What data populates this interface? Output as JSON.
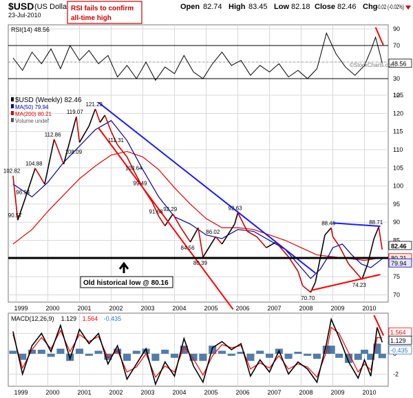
{
  "header": {
    "symbol": "$USD",
    "name": "(US Dollar Ind",
    "date": "23-Jul-2010",
    "open_label": "Open",
    "open": "82.74",
    "high_label": "High",
    "high": "83.45",
    "low_label": "Low",
    "low": "82.18",
    "close_label": "Close",
    "close": "82.46",
    "chg_label": "Chg",
    "chg": "-0.02 (-0.02%)",
    "watermark": "©StockCharts.com"
  },
  "annotations": {
    "rsi_note_line1": "RSI fails to confirm",
    "rsi_note_line2": "all-time high",
    "low_note": "Old historical low @ 80.16"
  },
  "colors": {
    "price_up": "#000000",
    "price_down": "#cc0000",
    "ma50": "#000099",
    "ma200": "#dd0000",
    "trend_blue": "#1a1aff",
    "trend_red": "#ff0000",
    "histogram": "#336699",
    "macd_signal": "#ff0000",
    "grid": "#d8d8d8"
  },
  "chart_data": [
    {
      "panel": "rsi",
      "type": "line",
      "legend": "RSI(14) 48.56",
      "yticks": [
        10,
        30,
        50,
        70,
        90
      ],
      "ylim": [
        10,
        95
      ],
      "reference_lines": [
        30,
        70
      ],
      "last_value": "48.56",
      "x": [
        1998.9,
        1999.2,
        1999.5,
        1999.8,
        2000.1,
        2000.4,
        2000.7,
        2001.0,
        2001.3,
        2001.6,
        2001.9,
        2002.2,
        2002.5,
        2002.8,
        2003.1,
        2003.4,
        2003.7,
        2004.0,
        2004.3,
        2004.6,
        2004.9,
        2005.2,
        2005.5,
        2005.8,
        2006.1,
        2006.4,
        2006.7,
        2007.0,
        2007.3,
        2007.6,
        2007.9,
        2008.2,
        2008.5,
        2008.8,
        2009.1,
        2009.4,
        2009.7,
        2010.0,
        2010.2,
        2010.35,
        2010.5,
        2010.56
      ],
      "y": [
        55,
        40,
        62,
        48,
        66,
        42,
        70,
        52,
        64,
        48,
        58,
        32,
        46,
        30,
        50,
        28,
        44,
        36,
        58,
        38,
        30,
        48,
        62,
        46,
        52,
        34,
        46,
        38,
        48,
        32,
        40,
        30,
        42,
        85,
        60,
        44,
        34,
        46,
        64,
        80,
        58,
        48.56
      ]
    },
    {
      "panel": "price",
      "type": "line",
      "legend": [
        "$USD (Weekly) 82.46",
        "MA(50) 79.94",
        "MA(200) 80.21",
        "Volume undef"
      ],
      "ylim": [
        68,
        125
      ],
      "yticks": [
        70,
        75,
        80,
        85,
        90,
        95,
        100,
        105,
        110,
        115,
        120,
        125
      ],
      "x_labels": [
        "1999",
        "2000",
        "2001",
        "2002",
        "2003",
        "2004",
        "2005",
        "2006",
        "2007",
        "2008",
        "2009",
        "2010"
      ],
      "x_ticks": [
        1999,
        2000,
        2001,
        2002,
        2003,
        2004,
        2005,
        2006,
        2007,
        2008,
        2009,
        2010
      ],
      "series": [
        {
          "name": "$USD (Weekly) 82.46",
          "x": [
            1998.9,
            1999.05,
            1999.3,
            1999.6,
            1999.9,
            2000.2,
            2000.5,
            2000.9,
            2001.0,
            2001.3,
            2001.5,
            2001.65,
            2001.8,
            2002.0,
            2002.2,
            2002.5,
            2002.75,
            2003.0,
            2003.3,
            2003.5,
            2003.7,
            2003.95,
            2004.2,
            2004.5,
            2004.75,
            2004.9,
            2005.3,
            2005.5,
            2005.9,
            2006.0,
            2006.3,
            2006.6,
            2006.9,
            2007.2,
            2007.6,
            2007.9,
            2008.05,
            2008.3,
            2008.45,
            2008.6,
            2008.75,
            2008.95,
            2009.0,
            2009.2,
            2009.5,
            2009.8,
            2009.92,
            2010.1,
            2010.3,
            2010.45,
            2010.56
          ],
          "y": [
            102.82,
            90.57,
            96.94,
            104.88,
            100.5,
            112.86,
            106.0,
            119.07,
            112.0,
            116.5,
            121.23,
            117.5,
            119.5,
            115.0,
            111.31,
            108.0,
            103.64,
            99.49,
            95.5,
            91.68,
            89.0,
            92.29,
            88.5,
            84.56,
            88.5,
            80.39,
            86.02,
            84.0,
            89.5,
            92.63,
            87.5,
            86.0,
            83.0,
            84.5,
            80.5,
            76.5,
            72.5,
            70.7,
            73.5,
            80.0,
            86.5,
            88.46,
            86.0,
            83.5,
            78.5,
            75.5,
            74.23,
            78.5,
            85.5,
            88.71,
            82.46
          ]
        },
        {
          "name": "MA(50) 79.94",
          "x": [
            1998.9,
            1999.5,
            2000.0,
            2000.5,
            2001.0,
            2001.5,
            2002.0,
            2002.5,
            2003.0,
            2003.5,
            2004.0,
            2004.5,
            2005.0,
            2005.5,
            2006.0,
            2006.5,
            2007.0,
            2007.5,
            2008.0,
            2008.3,
            2008.6,
            2008.85,
            2009.0,
            2009.3,
            2009.6,
            2009.9,
            2010.2,
            2010.56
          ],
          "y": [
            100.5,
            97.0,
            101.0,
            106.5,
            111.0,
            115.5,
            118.0,
            112.5,
            104.5,
            97.0,
            91.5,
            89.5,
            86.5,
            85.5,
            88.0,
            87.5,
            85.0,
            82.5,
            77.5,
            74.5,
            77.0,
            80.5,
            83.0,
            84.0,
            81.0,
            78.5,
            77.5,
            79.94
          ]
        },
        {
          "name": "MA(200) 80.21",
          "x": [
            1998.9,
            1999.5,
            2000.0,
            2000.5,
            2001.0,
            2001.5,
            2002.0,
            2002.5,
            2003.0,
            2003.5,
            2004.0,
            2004.5,
            2005.0,
            2005.5,
            2006.0,
            2006.5,
            2007.0,
            2007.5,
            2008.0,
            2008.5,
            2009.0,
            2009.5,
            2010.0,
            2010.56
          ],
          "y": [
            84.0,
            88.0,
            93.0,
            97.5,
            102.0,
            105.5,
            108.5,
            109.5,
            108.0,
            104.5,
            99.5,
            95.0,
            91.0,
            88.5,
            88.5,
            88.0,
            86.5,
            85.0,
            83.0,
            81.0,
            80.5,
            80.0,
            79.5,
            80.21
          ]
        }
      ],
      "data_labels": [
        {
          "text": "102.82",
          "x": 1998.9,
          "y": 102.82
        },
        {
          "text": "90.57",
          "x": 1999.05,
          "y": 90.57
        },
        {
          "text": "104.88",
          "x": 1999.6,
          "y": 104.88
        },
        {
          "text": "96.94",
          "x": 1999.3,
          "y": 96.94
        },
        {
          "text": "112.86",
          "x": 2000.2,
          "y": 112.86
        },
        {
          "text": "108.09",
          "x": 2000.85,
          "y": 108.09
        },
        {
          "text": "119.07",
          "x": 2000.9,
          "y": 119.07
        },
        {
          "text": "121.23",
          "x": 2001.5,
          "y": 121.23
        },
        {
          "text": "111.31",
          "x": 2002.2,
          "y": 111.31
        },
        {
          "text": "103.64",
          "x": 2002.75,
          "y": 103.64
        },
        {
          "text": "99.49",
          "x": 2003.0,
          "y": 99.49
        },
        {
          "text": "91.68",
          "x": 2003.5,
          "y": 91.68
        },
        {
          "text": "92.29",
          "x": 2003.95,
          "y": 92.29
        },
        {
          "text": "84.56",
          "x": 2004.5,
          "y": 84.56
        },
        {
          "text": "80.39",
          "x": 2004.9,
          "y": 80.39
        },
        {
          "text": "86.02",
          "x": 2005.3,
          "y": 86.02
        },
        {
          "text": "92.63",
          "x": 2006.0,
          "y": 92.63
        },
        {
          "text": "70.70",
          "x": 2008.3,
          "y": 70.7
        },
        {
          "text": "88.46",
          "x": 2008.95,
          "y": 88.46
        },
        {
          "text": "74.23",
          "x": 2009.92,
          "y": 74.23
        },
        {
          "text": "88.71",
          "x": 2010.45,
          "y": 88.71
        }
      ],
      "right_labels": [
        {
          "text": "82.46",
          "y": 82.46
        },
        {
          "text": "80.21",
          "y": 80.21
        },
        {
          "text": "79.94",
          "y": 79.94
        }
      ],
      "trendlines": [
        {
          "color": "trend_blue",
          "from": [
            2001.6,
            123.0
          ],
          "to": [
            2008.45,
            76.0
          ]
        },
        {
          "color": "trend_red",
          "from": [
            2001.6,
            116.0
          ],
          "to": [
            2005.85,
            66.0
          ]
        },
        {
          "color": "trend_blue",
          "from": [
            2009.0,
            89.8
          ],
          "to": [
            2010.5,
            88.9
          ]
        },
        {
          "color": "trend_red",
          "from": [
            2008.3,
            71.2
          ],
          "to": [
            2010.5,
            75.6
          ]
        }
      ],
      "horizontal_line": 80.16
    },
    {
      "panel": "macd",
      "type": "line",
      "legend": [
        "MACD(12,26,9)",
        "1.129",
        "1.564",
        "-0.435"
      ],
      "ylim": [
        -3.2,
        4.0
      ],
      "yticks": [
        -2,
        0,
        2
      ],
      "right_labels": [
        "1.564",
        "1.129",
        "-0.435"
      ],
      "x": [
        1998.9,
        1999.2,
        1999.5,
        1999.8,
        2000.1,
        2000.4,
        2000.7,
        2001.0,
        2001.3,
        2001.6,
        2001.9,
        2002.2,
        2002.5,
        2002.8,
        2003.1,
        2003.4,
        2003.7,
        2004.0,
        2004.3,
        2004.6,
        2004.9,
        2005.2,
        2005.5,
        2005.8,
        2006.1,
        2006.4,
        2006.7,
        2007.0,
        2007.3,
        2007.6,
        2007.9,
        2008.2,
        2008.5,
        2008.8,
        2008.95,
        2009.2,
        2009.5,
        2009.8,
        2010.0,
        2010.2,
        2010.4,
        2010.56
      ],
      "series": [
        {
          "name": "MACD(12,26,9)",
          "values": [
            2.2,
            -2.0,
            0.8,
            2.0,
            0.2,
            2.8,
            -0.5,
            2.4,
            1.0,
            2.0,
            -1.0,
            0.8,
            -2.5,
            -1.0,
            0.5,
            -3.0,
            -0.8,
            -2.2,
            1.5,
            -1.2,
            -2.8,
            0.6,
            1.2,
            0.4,
            1.0,
            -2.2,
            -0.6,
            -1.8,
            0.3,
            -2.0,
            -0.8,
            -1.5,
            -2.8,
            1.0,
            3.4,
            1.6,
            -0.8,
            -2.4,
            -0.6,
            -2.2,
            2.6,
            1.129
          ]
        },
        {
          "name": "1.564",
          "values": [
            1.9,
            -1.4,
            0.4,
            1.6,
            0.5,
            2.3,
            0.2,
            1.9,
            1.2,
            1.7,
            -0.4,
            0.3,
            -1.8,
            -1.3,
            0.0,
            -2.3,
            -1.2,
            -1.8,
            0.7,
            -0.5,
            -2.1,
            -0.2,
            0.9,
            0.6,
            0.8,
            -1.5,
            -0.9,
            -1.4,
            -0.2,
            -1.5,
            -1.0,
            -1.3,
            -2.3,
            0.2,
            2.6,
            2.0,
            0.1,
            -1.8,
            -1.0,
            -1.6,
            1.6,
            1.564
          ]
        }
      ],
      "histogram": [
        0.3,
        -0.6,
        0.4,
        0.4,
        -0.3,
        0.5,
        -0.7,
        0.5,
        -0.2,
        0.3,
        -0.6,
        0.5,
        -0.7,
        0.3,
        0.5,
        -0.7,
        0.4,
        -0.4,
        0.8,
        -0.7,
        -0.7,
        0.8,
        0.3,
        -0.2,
        0.2,
        -0.7,
        0.3,
        -0.4,
        0.5,
        -0.5,
        0.2,
        -0.2,
        -0.5,
        0.8,
        0.8,
        -0.4,
        -0.9,
        -0.6,
        0.4,
        -0.6,
        1.0,
        -0.435
      ]
    }
  ]
}
